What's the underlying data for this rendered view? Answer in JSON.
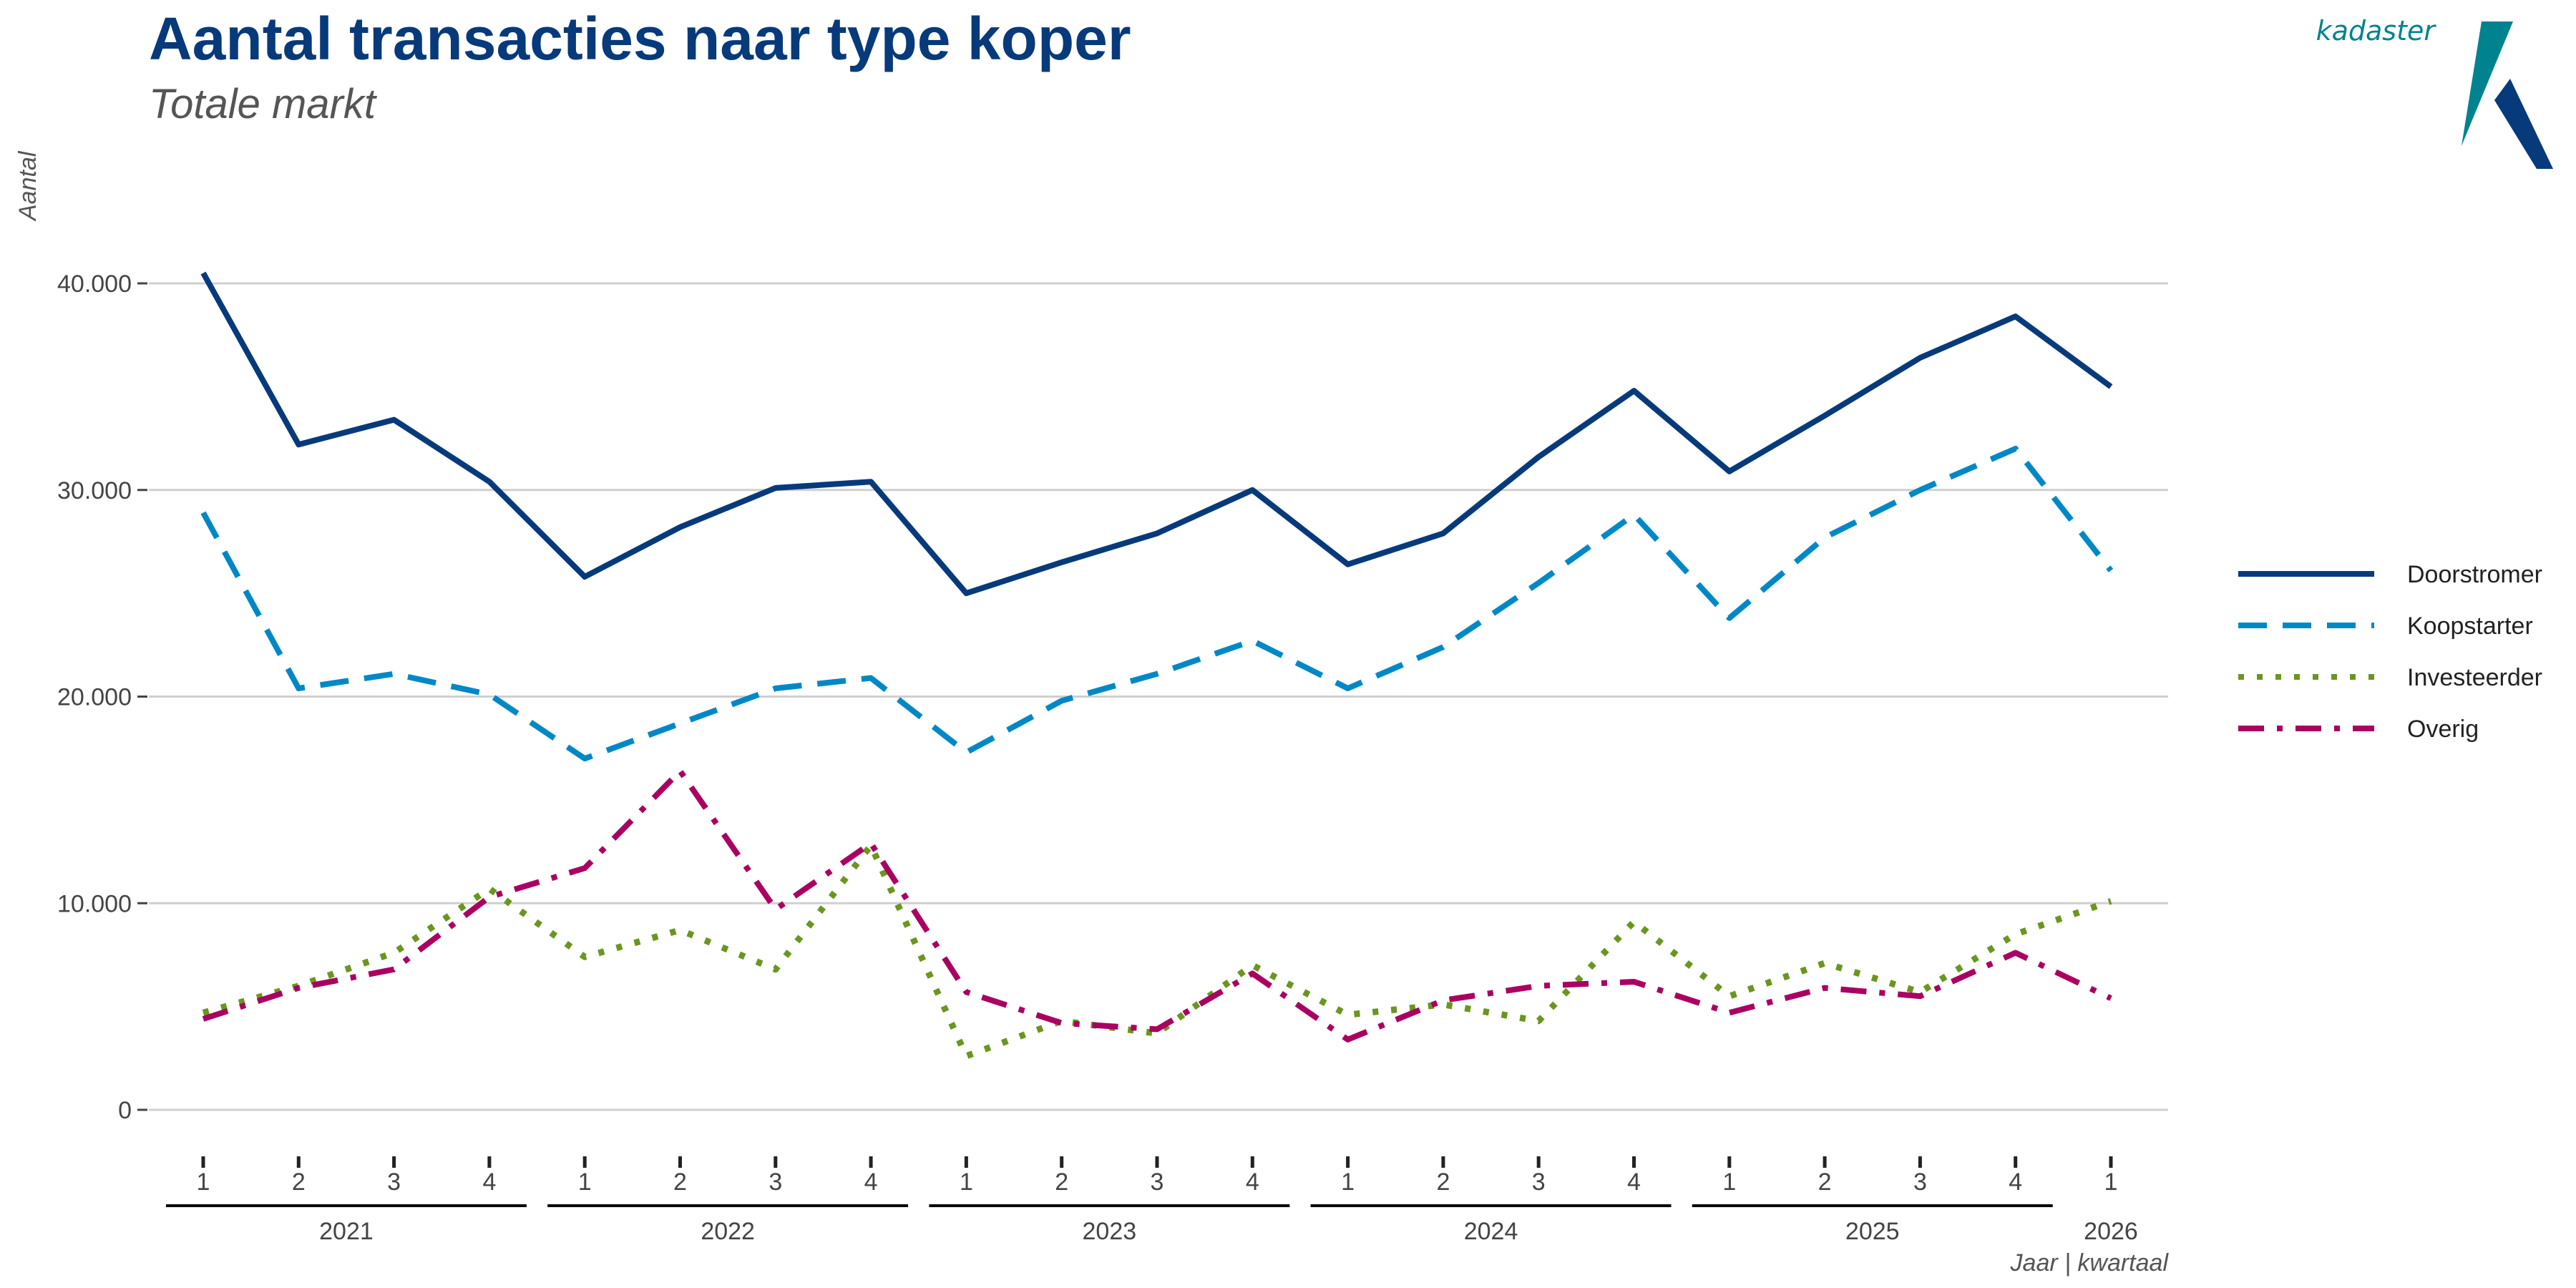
{
  "header": {
    "title": "Aantal transacties naar type koper",
    "subtitle": "Totale markt"
  },
  "logo": {
    "text": "kadaster",
    "icon": "kadaster-logo-icon",
    "colors": {
      "teal": "#00838F",
      "navy": "#073A7B"
    }
  },
  "chart_data": {
    "type": "line",
    "ylabel": "Aantal",
    "xlabel": "Jaar | kwartaal",
    "ylim": [
      0,
      40000
    ],
    "yticks": [
      0,
      10000,
      20000,
      30000,
      40000
    ],
    "ytick_labels": [
      "0",
      "10.000",
      "20.000",
      "30.000",
      "40.000"
    ],
    "quarter_labels": [
      "1",
      "2",
      "3",
      "4",
      "1",
      "2",
      "3",
      "4",
      "1",
      "2",
      "3",
      "4",
      "1",
      "2",
      "3",
      "4",
      "1",
      "2",
      "3",
      "4",
      "1"
    ],
    "year_groups": [
      {
        "label": "2021",
        "quarters": 4
      },
      {
        "label": "2022",
        "quarters": 4
      },
      {
        "label": "2023",
        "quarters": 4
      },
      {
        "label": "2024",
        "quarters": 4
      },
      {
        "label": "2025",
        "quarters": 4
      },
      {
        "label": "2026",
        "quarters": 1
      }
    ],
    "grid": "horizontal",
    "legend_position": "right",
    "series": [
      {
        "name": "Doorstromer",
        "color": "#073A7B",
        "dash": "solid",
        "values": [
          40500,
          32200,
          33400,
          30400,
          25800,
          28200,
          30100,
          30400,
          25000,
          26500,
          27900,
          30000,
          26400,
          27900,
          31600,
          34800,
          30900,
          33600,
          36400,
          38400,
          35000
        ]
      },
      {
        "name": "Koopstarter",
        "color": "#0088C6",
        "dash": "dashed",
        "values": [
          28900,
          20400,
          21100,
          20100,
          17000,
          18700,
          20400,
          20900,
          17300,
          19800,
          21100,
          22700,
          20400,
          22400,
          25500,
          28800,
          23800,
          27700,
          30000,
          32000,
          26100
        ]
      },
      {
        "name": "Investeerder",
        "color": "#6A961F",
        "dash": "dotted",
        "values": [
          4700,
          6000,
          7600,
          10700,
          7400,
          8700,
          6800,
          12800,
          2600,
          4300,
          3700,
          7000,
          4600,
          5100,
          4300,
          9100,
          5500,
          7100,
          5700,
          8500,
          10100
        ]
      },
      {
        "name": "Overig",
        "color": "#A90061",
        "dash": "dashdot",
        "values": [
          4400,
          5900,
          6800,
          10300,
          11700,
          16400,
          9700,
          12900,
          5700,
          4200,
          3900,
          6600,
          3400,
          5300,
          6000,
          6200,
          4700,
          5900,
          5500,
          7600,
          5400
        ]
      }
    ]
  }
}
